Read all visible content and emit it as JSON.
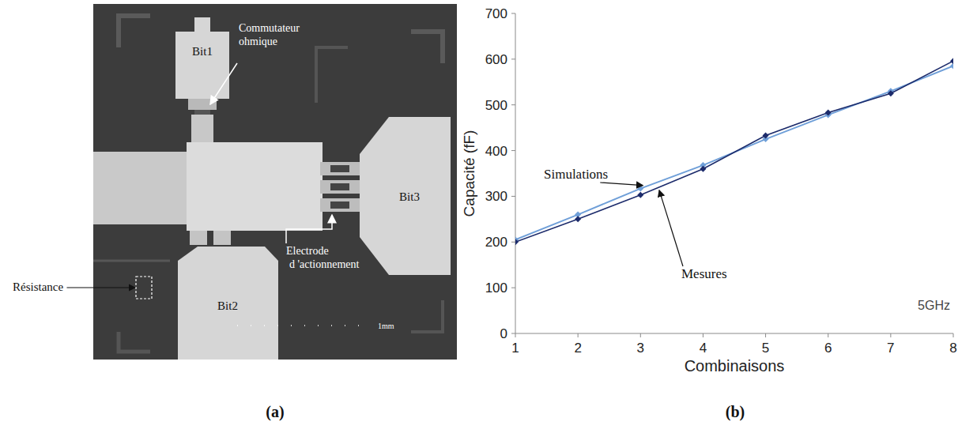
{
  "chart_data": {
    "type": "line",
    "x_label": "Combinaisons",
    "y_label": "Capacité (fF)",
    "annotations": [
      "5GHz"
    ],
    "x": [
      1,
      2,
      3,
      4,
      5,
      6,
      7,
      8
    ],
    "xlim": [
      1,
      8
    ],
    "xticks": [
      1,
      2,
      3,
      4,
      5,
      6,
      7,
      8
    ],
    "ylim": [
      0,
      700
    ],
    "yticks": [
      0,
      100,
      200,
      300,
      400,
      500,
      600,
      700
    ],
    "grid": false,
    "series": [
      {
        "name": "Simulations",
        "color": "#6f9fd8",
        "marker": "diamond",
        "line_style": "solid",
        "values": [
          205,
          260,
          317,
          368,
          425,
          478,
          530,
          585
        ]
      },
      {
        "name": "Mesures",
        "color": "#1c2b6b",
        "marker": "diamond",
        "line_style": "solid",
        "values": [
          200,
          250,
          303,
          360,
          433,
          483,
          525,
          596
        ]
      }
    ]
  },
  "photo": {
    "labels": {
      "bit1": "Bit1",
      "bit2": "Bit2",
      "bit3": "Bit3",
      "switch": "Commutateur ohmique",
      "electrode": "Electrode d 'actionnement",
      "resistor": "Résistance",
      "scale": "1mm"
    }
  },
  "panel_labels": [
    "(a)",
    "(b)"
  ]
}
